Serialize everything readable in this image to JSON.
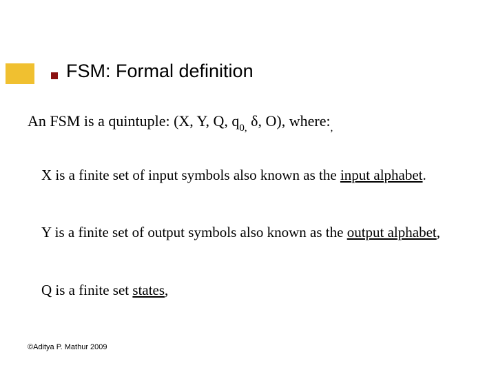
{
  "accent": {
    "block_color": "#f0c030",
    "bullet_color": "#8a1010"
  },
  "title": "FSM: Formal definition",
  "intro": {
    "prefix": "An FSM is a quintuple: (X, Y, Q, q",
    "sub": "0,",
    "suffix": " δ, O), where:",
    "trailing_sub": ","
  },
  "paragraphs": {
    "x": {
      "text_before": "X is a finite set of  input symbols also known as the ",
      "underlined": "input alphabet",
      "text_after": "."
    },
    "y": {
      "text_before": "Y is a finite set of output symbols also known as  the ",
      "underlined": "output alphabet",
      "text_after": ","
    },
    "q": {
      "text_before": "Q is a finite set ",
      "underlined": "states",
      "text_after": ","
    }
  },
  "footer": "©Aditya P. Mathur 2009",
  "style": {
    "title_fontsize": 27,
    "body_fontsize": 21,
    "intro_fontsize": 22,
    "footer_fontsize": 11,
    "background": "#ffffff",
    "text_color": "#000000"
  }
}
